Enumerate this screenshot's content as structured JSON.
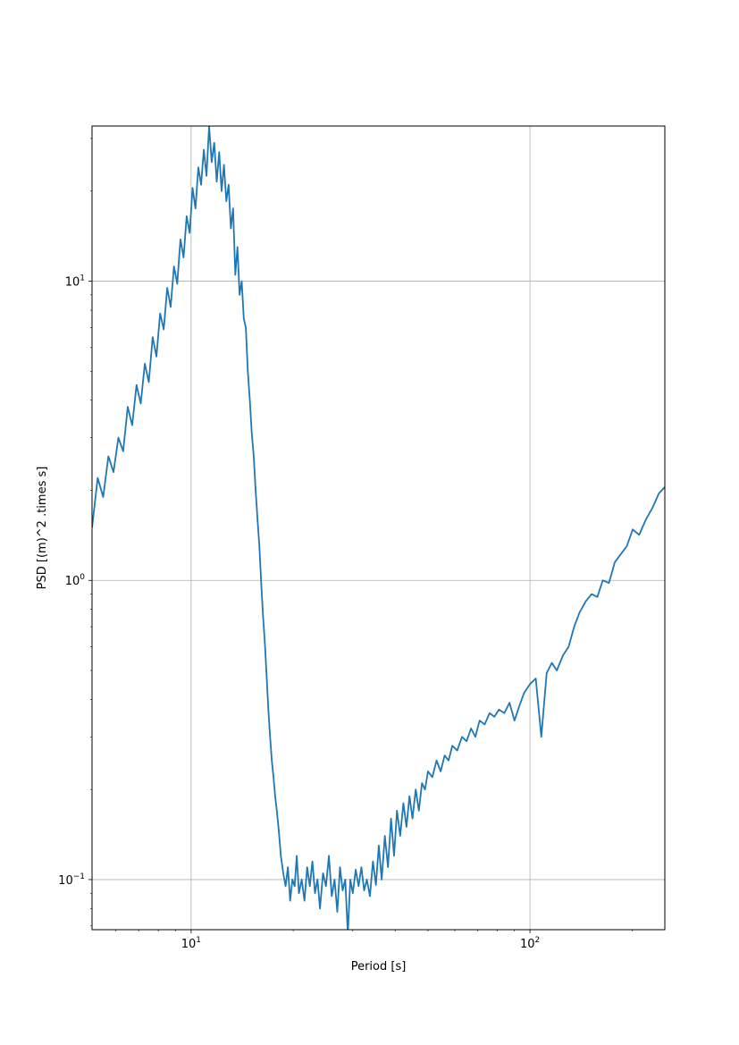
{
  "chart_data": {
    "type": "line",
    "title": "",
    "xlabel": "Period [s]",
    "ylabel": "PSD [(m)^2 .times s]",
    "xscale": "log",
    "yscale": "log",
    "xlim": [
      5.1,
      250
    ],
    "ylim": [
      0.068,
      33
    ],
    "grid": true,
    "line_color": "#1f77b4",
    "x_ticks": [
      {
        "value": 10,
        "base": "10",
        "exp": "1"
      },
      {
        "value": 100,
        "base": "10",
        "exp": "2"
      }
    ],
    "y_ticks": [
      {
        "value": 0.1,
        "base": "10",
        "exp": "−1"
      },
      {
        "value": 1,
        "base": "10",
        "exp": "0"
      },
      {
        "value": 10,
        "base": "10",
        "exp": "1"
      }
    ],
    "series": [
      {
        "x": [
          5.1,
          5.3,
          5.5,
          5.7,
          5.9,
          6.1,
          6.3,
          6.5,
          6.7,
          6.9,
          7.1,
          7.3,
          7.5,
          7.7,
          7.9,
          8.1,
          8.3,
          8.5,
          8.7,
          8.9,
          9.1,
          9.3,
          9.5,
          9.7,
          9.9,
          10.1,
          10.3,
          10.5,
          10.7,
          10.9,
          11.1,
          11.3,
          11.5,
          11.7,
          11.9,
          12.1,
          12.3,
          12.5,
          12.7,
          12.9,
          13.1,
          13.3,
          13.5,
          13.7,
          13.9,
          14.1,
          14.3,
          14.5,
          14.7,
          14.9,
          15.1,
          15.3,
          15.5,
          15.7,
          15.9,
          16.1,
          16.3,
          16.5,
          16.7,
          16.9,
          17.1,
          17.3,
          17.5,
          17.7,
          17.9,
          18.1,
          18.4,
          18.7,
          19.0,
          19.3,
          19.6,
          19.9,
          20.2,
          20.5,
          20.8,
          21.2,
          21.6,
          22.0,
          22.4,
          22.8,
          23.2,
          23.6,
          24.0,
          24.5,
          25.0,
          25.5,
          26.0,
          26.5,
          27.0,
          27.5,
          28.0,
          28.5,
          29.0,
          29.5,
          30.0,
          30.6,
          31.2,
          31.8,
          32.4,
          33.0,
          33.7,
          34.4,
          35.1,
          35.8,
          36.5,
          37.3,
          38.1,
          38.9,
          39.7,
          40.5,
          41.4,
          42.3,
          43.2,
          44.1,
          45.0,
          46.0,
          47.0,
          48.0,
          49.0,
          50.0,
          51.5,
          53.0,
          54.5,
          56.0,
          57.5,
          59.0,
          61.0,
          63.0,
          65.0,
          67.0,
          69.0,
          71.0,
          73.5,
          76.0,
          78.5,
          81.0,
          84.0,
          87.0,
          90.0,
          93.0,
          96.0,
          100.0,
          104.0,
          108.0,
          112.0,
          116.0,
          120.0,
          125.0,
          130.0,
          135.0,
          140.0,
          146.0,
          152.0,
          158.0,
          164.0,
          171.0,
          178.0,
          185.0,
          193.0,
          201.0,
          210.0,
          220.0,
          230.0,
          240.0,
          250.0
        ],
        "y": [
          1.5,
          2.2,
          1.9,
          2.6,
          2.3,
          3.0,
          2.7,
          3.8,
          3.3,
          4.5,
          3.9,
          5.3,
          4.6,
          6.5,
          5.6,
          7.8,
          6.9,
          9.5,
          8.2,
          11.2,
          9.8,
          13.8,
          12.0,
          16.5,
          14.5,
          20.5,
          17.5,
          24.0,
          21.0,
          27.5,
          22.5,
          33.0,
          25.0,
          29.0,
          21.5,
          27.0,
          20.0,
          24.5,
          18.5,
          21.0,
          15.0,
          17.5,
          10.5,
          13.0,
          9.0,
          10.0,
          7.5,
          7.0,
          5.0,
          4.0,
          3.1,
          2.6,
          2.0,
          1.6,
          1.3,
          0.98,
          0.76,
          0.62,
          0.48,
          0.37,
          0.3,
          0.25,
          0.22,
          0.19,
          0.17,
          0.15,
          0.12,
          0.105,
          0.095,
          0.11,
          0.085,
          0.1,
          0.095,
          0.12,
          0.09,
          0.1,
          0.085,
          0.11,
          0.095,
          0.115,
          0.09,
          0.1,
          0.08,
          0.105,
          0.095,
          0.12,
          0.088,
          0.1,
          0.078,
          0.11,
          0.092,
          0.1,
          0.066,
          0.1,
          0.09,
          0.108,
          0.095,
          0.11,
          0.092,
          0.1,
          0.088,
          0.115,
          0.096,
          0.13,
          0.1,
          0.14,
          0.11,
          0.16,
          0.12,
          0.17,
          0.14,
          0.18,
          0.15,
          0.19,
          0.16,
          0.2,
          0.17,
          0.21,
          0.2,
          0.23,
          0.22,
          0.25,
          0.23,
          0.26,
          0.25,
          0.28,
          0.27,
          0.3,
          0.29,
          0.32,
          0.3,
          0.34,
          0.33,
          0.36,
          0.35,
          0.37,
          0.36,
          0.39,
          0.34,
          0.38,
          0.42,
          0.45,
          0.47,
          0.3,
          0.49,
          0.53,
          0.5,
          0.56,
          0.6,
          0.7,
          0.78,
          0.85,
          0.9,
          0.88,
          1.0,
          0.98,
          1.15,
          1.22,
          1.3,
          1.48,
          1.42,
          1.6,
          1.75,
          1.95,
          2.05
        ]
      }
    ]
  }
}
